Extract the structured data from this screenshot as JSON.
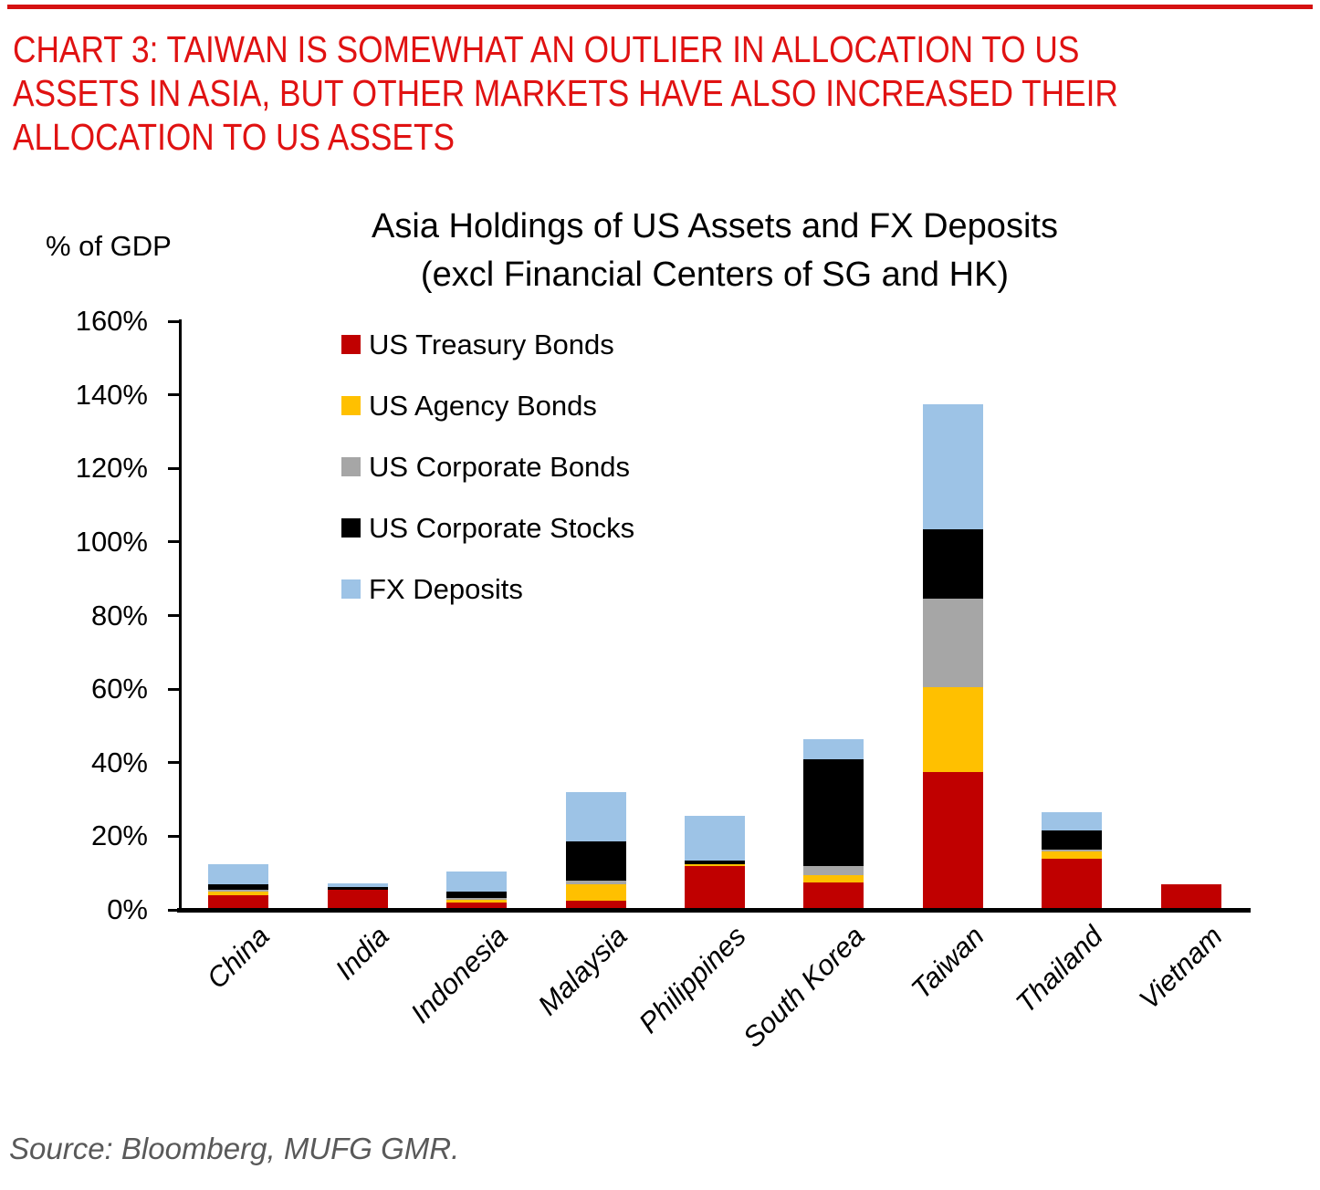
{
  "header": {
    "line1": "CHART 3: TAIWAN IS SOMEWHAT AN OUTLIER IN ALLOCATION TO US",
    "line2": "ASSETS IN ASIA, BUT OTHER MARKETS HAVE ALSO INCREASED THEIR",
    "line3": "ALLOCATION TO US ASSETS",
    "accent_color": "#e01212"
  },
  "chart_data": {
    "type": "bar",
    "stacked": true,
    "title": "Asia Holdings of US Assets and FX Deposits",
    "subtitle": "(excl Financial Centers of SG and HK)",
    "ylabel": "% of GDP",
    "ylim": [
      0,
      160
    ],
    "ytick_step": 20,
    "ytick_labels": [
      "0%",
      "20%",
      "40%",
      "60%",
      "80%",
      "100%",
      "120%",
      "140%",
      "160%"
    ],
    "grid": false,
    "legend_position": "upper-left-inside",
    "categories": [
      "China",
      "India",
      "Indonesia",
      "Malaysia",
      "Philippines",
      "South Korea",
      "Taiwan",
      "Thailand",
      "Vietnam"
    ],
    "series": [
      {
        "name": "US Treasury Bonds",
        "color": "#C00000",
        "values": [
          3.5,
          5,
          1.5,
          2,
          11.5,
          7,
          37,
          13.5,
          6.5
        ]
      },
      {
        "name": "US Agency Bonds",
        "color": "#FFC000",
        "values": [
          1,
          0,
          0.75,
          4.5,
          0.5,
          2,
          23,
          2,
          0
        ]
      },
      {
        "name": "US Corporate Bonds",
        "color": "#A6A6A6",
        "values": [
          0.5,
          0,
          0.5,
          1,
          0,
          2.5,
          24,
          0.5,
          0
        ]
      },
      {
        "name": "US Corporate Stocks",
        "color": "#000000",
        "values": [
          1.5,
          0.8,
          1.75,
          10.5,
          1,
          29,
          19,
          5,
          0
        ]
      },
      {
        "name": "FX Deposits",
        "color": "#9DC3E6",
        "values": [
          5.5,
          1,
          5.5,
          13.5,
          12,
          5.5,
          34,
          5,
          0
        ]
      }
    ],
    "totals": [
      12.0,
      6.8,
      10.0,
      31.5,
      25.0,
      46.0,
      137.0,
      26.0,
      6.5
    ],
    "units": "% of GDP"
  },
  "source": "Source: Bloomberg, MUFG GMR."
}
